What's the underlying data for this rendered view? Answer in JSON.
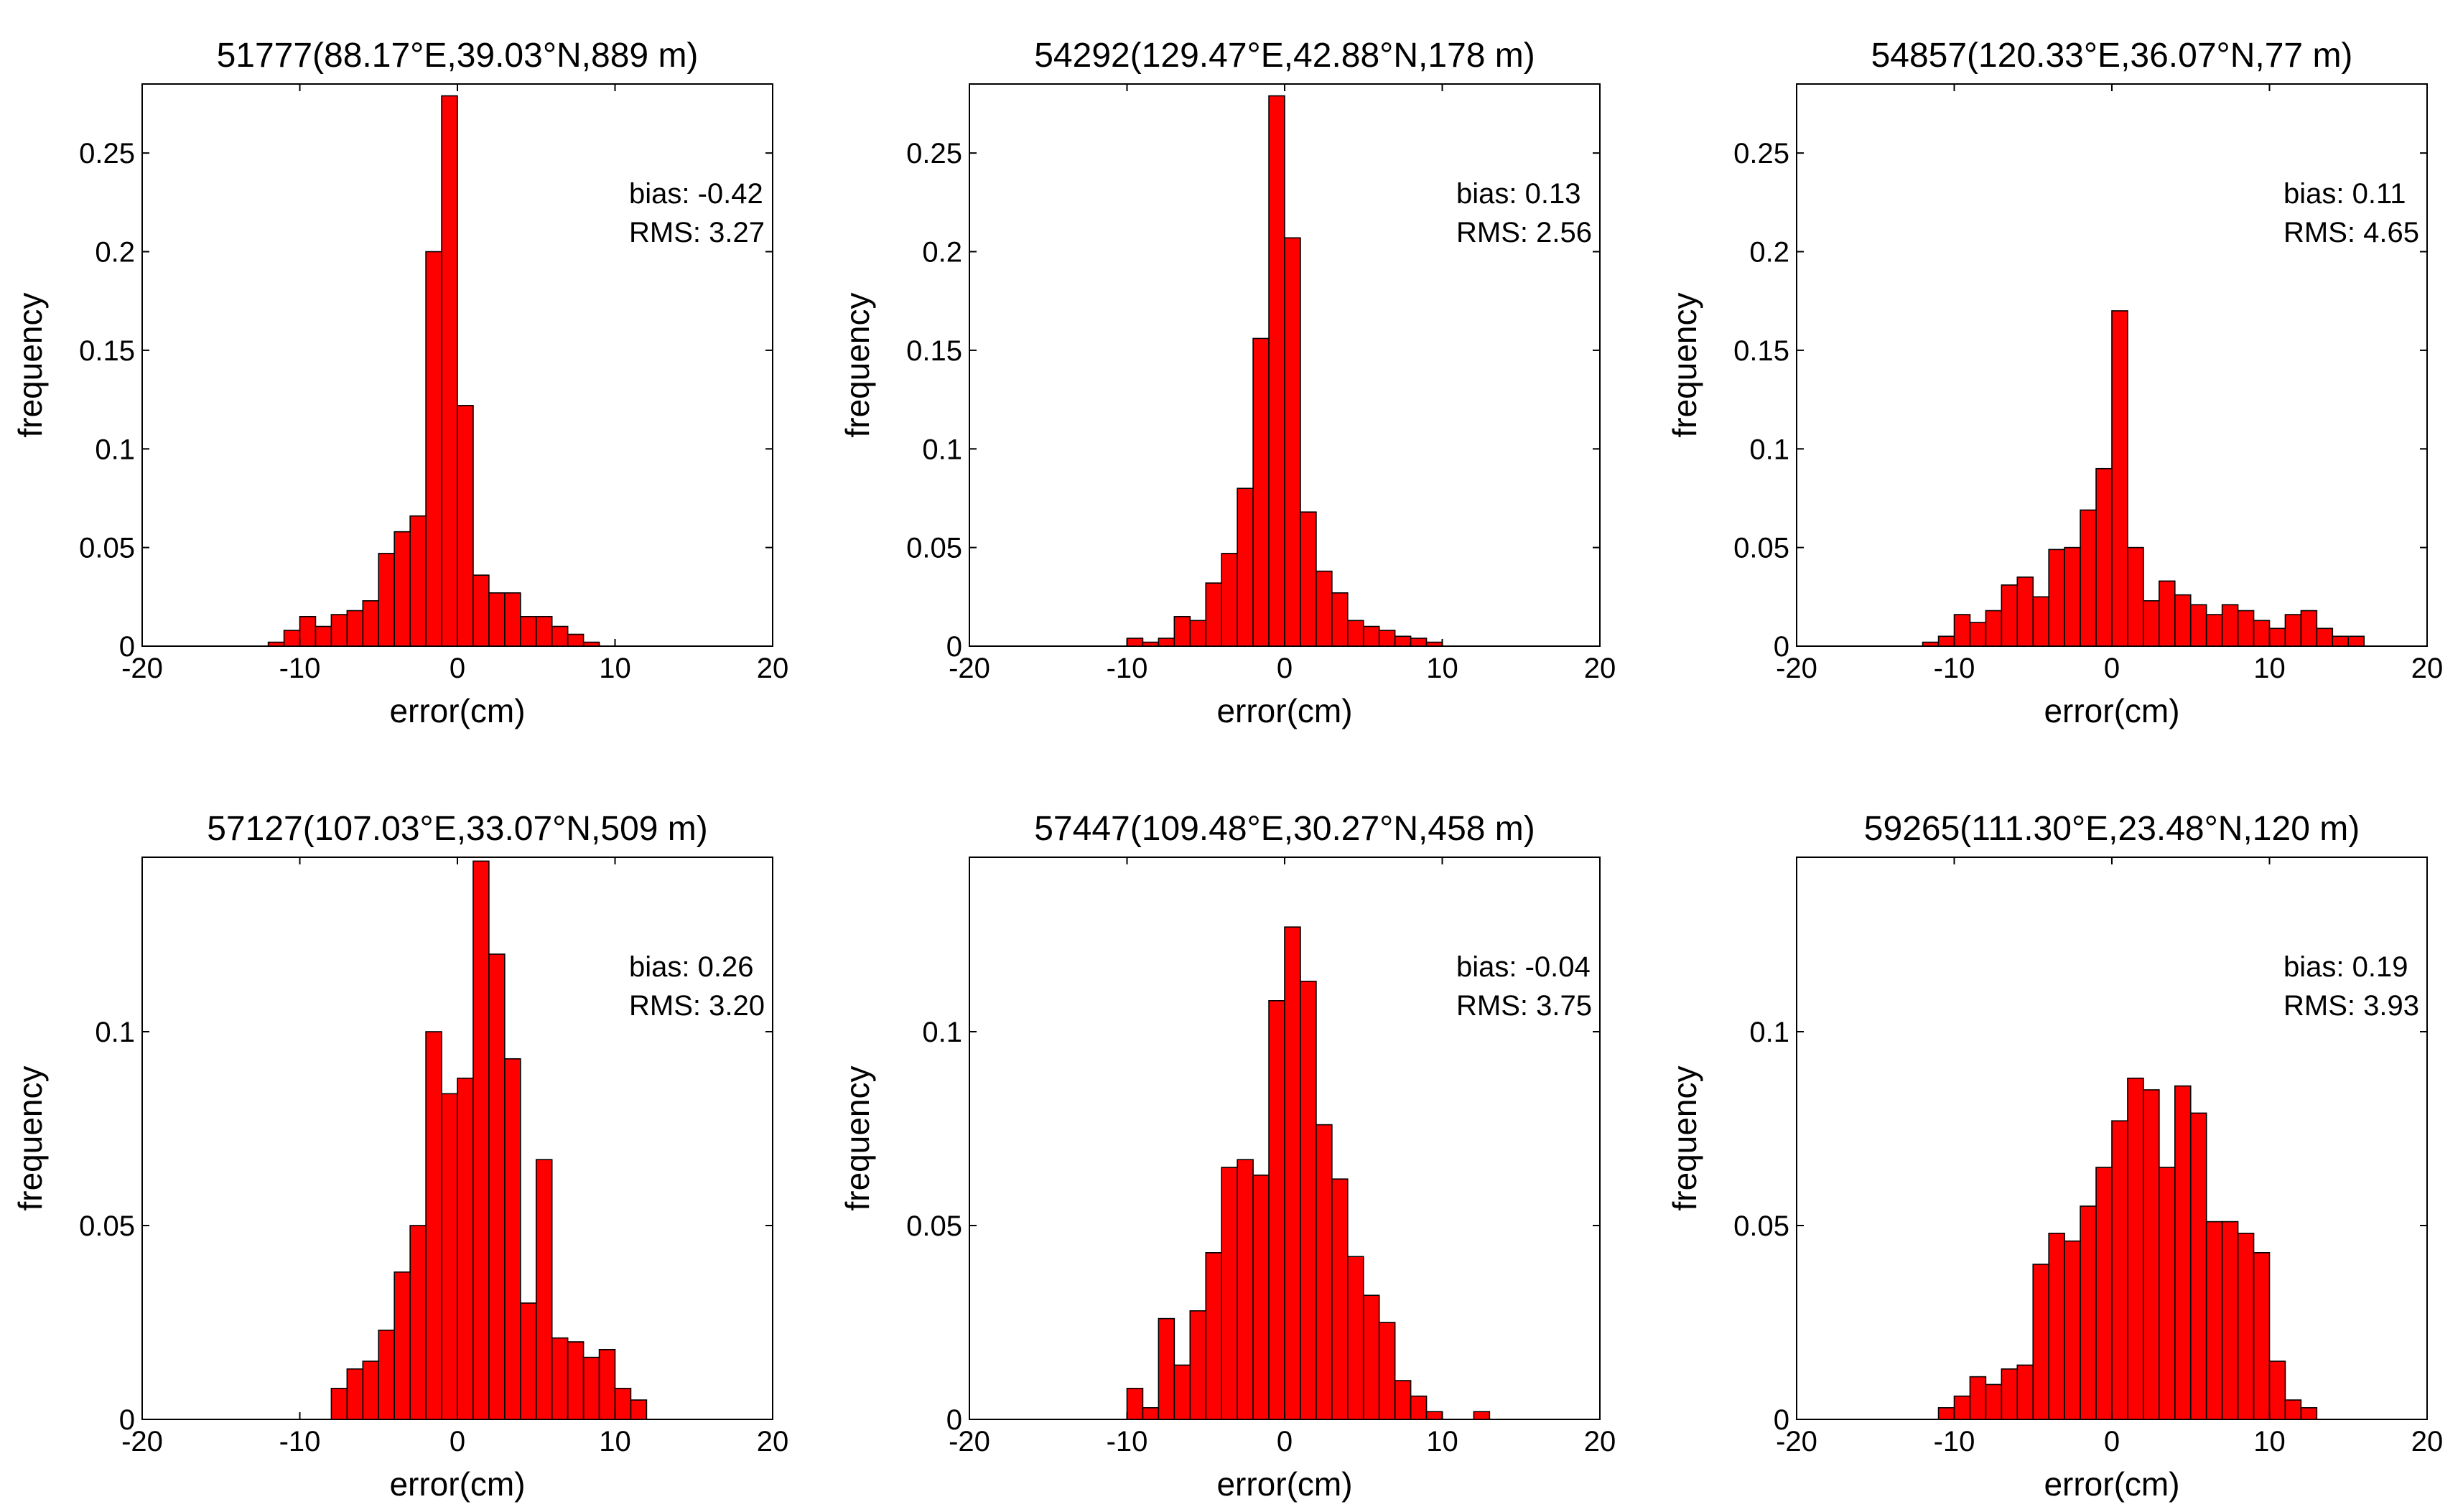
{
  "figure": {
    "bar_color": "#ff0000",
    "edge_color": "#000000",
    "background": "#ffffff"
  },
  "chart_data": [
    {
      "type": "bar",
      "title": "51777(88.17°E,39.03°N,889 m)",
      "xlabel": "error(cm)",
      "ylabel": "frequency",
      "xlim": [
        -20,
        20
      ],
      "ylim": [
        0,
        0.285
      ],
      "bin_width": 1,
      "xticks": [
        "-20",
        "-10",
        "0",
        "10",
        "20"
      ],
      "yticks": [
        "0",
        "0.05",
        "0.1",
        "0.15",
        "0.2",
        "0.25"
      ],
      "bias_text": "bias: -0.42",
      "rms_text": "RMS: 3.27",
      "bins": [
        {
          "x0": -12,
          "value": 0.002
        },
        {
          "x0": -11,
          "value": 0.008
        },
        {
          "x0": -10,
          "value": 0.015
        },
        {
          "x0": -9,
          "value": 0.01
        },
        {
          "x0": -8,
          "value": 0.016
        },
        {
          "x0": -7,
          "value": 0.018
        },
        {
          "x0": -6,
          "value": 0.023
        },
        {
          "x0": -5,
          "value": 0.047
        },
        {
          "x0": -4,
          "value": 0.058
        },
        {
          "x0": -3,
          "value": 0.066
        },
        {
          "x0": -2,
          "value": 0.2
        },
        {
          "x0": -1,
          "value": 0.279
        },
        {
          "x0": 0,
          "value": 0.122
        },
        {
          "x0": 1,
          "value": 0.036
        },
        {
          "x0": 2,
          "value": 0.027
        },
        {
          "x0": 3,
          "value": 0.027
        },
        {
          "x0": 4,
          "value": 0.015
        },
        {
          "x0": 5,
          "value": 0.015
        },
        {
          "x0": 6,
          "value": 0.01
        },
        {
          "x0": 7,
          "value": 0.006
        },
        {
          "x0": 8,
          "value": 0.002
        }
      ]
    },
    {
      "type": "bar",
      "title": "54292(129.47°E,42.88°N,178 m)",
      "xlabel": "error(cm)",
      "ylabel": "frequency",
      "xlim": [
        -20,
        20
      ],
      "ylim": [
        0,
        0.285
      ],
      "bin_width": 1,
      "xticks": [
        "-20",
        "-10",
        "0",
        "10",
        "20"
      ],
      "yticks": [
        "0",
        "0.05",
        "0.1",
        "0.15",
        "0.2",
        "0.25"
      ],
      "bias_text": "bias:  0.13",
      "rms_text": "RMS: 2.56",
      "bins": [
        {
          "x0": -10,
          "value": 0.004
        },
        {
          "x0": -9,
          "value": 0.002
        },
        {
          "x0": -8,
          "value": 0.004
        },
        {
          "x0": -7,
          "value": 0.015
        },
        {
          "x0": -6,
          "value": 0.013
        },
        {
          "x0": -5,
          "value": 0.032
        },
        {
          "x0": -4,
          "value": 0.047
        },
        {
          "x0": -3,
          "value": 0.08
        },
        {
          "x0": -2,
          "value": 0.156
        },
        {
          "x0": -1,
          "value": 0.279
        },
        {
          "x0": 0,
          "value": 0.207
        },
        {
          "x0": 1,
          "value": 0.068
        },
        {
          "x0": 2,
          "value": 0.038
        },
        {
          "x0": 3,
          "value": 0.027
        },
        {
          "x0": 4,
          "value": 0.013
        },
        {
          "x0": 5,
          "value": 0.01
        },
        {
          "x0": 6,
          "value": 0.008
        },
        {
          "x0": 7,
          "value": 0.005
        },
        {
          "x0": 8,
          "value": 0.004
        },
        {
          "x0": 9,
          "value": 0.002
        }
      ]
    },
    {
      "type": "bar",
      "title": "54857(120.33°E,36.07°N,77 m)",
      "xlabel": "error(cm)",
      "ylabel": "frequency",
      "xlim": [
        -20,
        20
      ],
      "ylim": [
        0,
        0.285
      ],
      "bin_width": 1,
      "xticks": [
        "-20",
        "-10",
        "0",
        "10",
        "20"
      ],
      "yticks": [
        "0",
        "0.05",
        "0.1",
        "0.15",
        "0.2",
        "0.25"
      ],
      "bias_text": "bias:  0.11",
      "rms_text": "RMS: 4.65",
      "bins": [
        {
          "x0": -12,
          "value": 0.002
        },
        {
          "x0": -11,
          "value": 0.005
        },
        {
          "x0": -10,
          "value": 0.016
        },
        {
          "x0": -9,
          "value": 0.012
        },
        {
          "x0": -8,
          "value": 0.018
        },
        {
          "x0": -7,
          "value": 0.031
        },
        {
          "x0": -6,
          "value": 0.035
        },
        {
          "x0": -5,
          "value": 0.025
        },
        {
          "x0": -4,
          "value": 0.049
        },
        {
          "x0": -3,
          "value": 0.05
        },
        {
          "x0": -2,
          "value": 0.069
        },
        {
          "x0": -1,
          "value": 0.09
        },
        {
          "x0": 0,
          "value": 0.17
        },
        {
          "x0": 1,
          "value": 0.05
        },
        {
          "x0": 2,
          "value": 0.023
        },
        {
          "x0": 3,
          "value": 0.033
        },
        {
          "x0": 4,
          "value": 0.026
        },
        {
          "x0": 5,
          "value": 0.021
        },
        {
          "x0": 6,
          "value": 0.016
        },
        {
          "x0": 7,
          "value": 0.021
        },
        {
          "x0": 8,
          "value": 0.018
        },
        {
          "x0": 9,
          "value": 0.013
        },
        {
          "x0": 10,
          "value": 0.009
        },
        {
          "x0": 11,
          "value": 0.016
        },
        {
          "x0": 12,
          "value": 0.018
        },
        {
          "x0": 13,
          "value": 0.009
        },
        {
          "x0": 14,
          "value": 0.005
        },
        {
          "x0": 15,
          "value": 0.005
        }
      ]
    },
    {
      "type": "bar",
      "title": "57127(107.03°E,33.07°N,509 m)",
      "xlabel": "error(cm)",
      "ylabel": "frequency",
      "xlim": [
        -20,
        20
      ],
      "ylim": [
        0,
        0.145
      ],
      "bin_width": 1,
      "xticks": [
        "-20",
        "-10",
        "0",
        "10",
        "20"
      ],
      "yticks": [
        "0",
        "0.05",
        "0.1"
      ],
      "bias_text": "bias:  0.26",
      "rms_text": "RMS: 3.20",
      "bins": [
        {
          "x0": -8,
          "value": 0.008
        },
        {
          "x0": -7,
          "value": 0.013
        },
        {
          "x0": -6,
          "value": 0.015
        },
        {
          "x0": -5,
          "value": 0.023
        },
        {
          "x0": -4,
          "value": 0.038
        },
        {
          "x0": -3,
          "value": 0.05
        },
        {
          "x0": -2,
          "value": 0.1
        },
        {
          "x0": -1,
          "value": 0.084
        },
        {
          "x0": 0,
          "value": 0.088
        },
        {
          "x0": 1,
          "value": 0.144
        },
        {
          "x0": 2,
          "value": 0.12
        },
        {
          "x0": 3,
          "value": 0.093
        },
        {
          "x0": 4,
          "value": 0.03
        },
        {
          "x0": 5,
          "value": 0.067
        },
        {
          "x0": 6,
          "value": 0.021
        },
        {
          "x0": 7,
          "value": 0.02
        },
        {
          "x0": 8,
          "value": 0.016
        },
        {
          "x0": 9,
          "value": 0.018
        },
        {
          "x0": 10,
          "value": 0.008
        },
        {
          "x0": 11,
          "value": 0.005
        }
      ]
    },
    {
      "type": "bar",
      "title": "57447(109.48°E,30.27°N,458 m)",
      "xlabel": "error(cm)",
      "ylabel": "frequency",
      "xlim": [
        -20,
        20
      ],
      "ylim": [
        0,
        0.145
      ],
      "bin_width": 1,
      "xticks": [
        "-20",
        "-10",
        "0",
        "10",
        "20"
      ],
      "yticks": [
        "0",
        "0.05",
        "0.1"
      ],
      "bias_text": "bias: -0.04",
      "rms_text": "RMS: 3.75",
      "bins": [
        {
          "x0": -10,
          "value": 0.008
        },
        {
          "x0": -9,
          "value": 0.003
        },
        {
          "x0": -8,
          "value": 0.026
        },
        {
          "x0": -7,
          "value": 0.014
        },
        {
          "x0": -6,
          "value": 0.028
        },
        {
          "x0": -5,
          "value": 0.043
        },
        {
          "x0": -4,
          "value": 0.065
        },
        {
          "x0": -3,
          "value": 0.067
        },
        {
          "x0": -2,
          "value": 0.063
        },
        {
          "x0": -1,
          "value": 0.108
        },
        {
          "x0": 0,
          "value": 0.127
        },
        {
          "x0": 1,
          "value": 0.113
        },
        {
          "x0": 2,
          "value": 0.076
        },
        {
          "x0": 3,
          "value": 0.062
        },
        {
          "x0": 4,
          "value": 0.042
        },
        {
          "x0": 5,
          "value": 0.032
        },
        {
          "x0": 6,
          "value": 0.025
        },
        {
          "x0": 7,
          "value": 0.01
        },
        {
          "x0": 8,
          "value": 0.006
        },
        {
          "x0": 9,
          "value": 0.002
        },
        {
          "x0": 10,
          "value": 0
        },
        {
          "x0": 11,
          "value": 0
        },
        {
          "x0": 12,
          "value": 0.002
        }
      ]
    },
    {
      "type": "bar",
      "title": "59265(111.30°E,23.48°N,120 m)",
      "xlabel": "error(cm)",
      "ylabel": "frequency",
      "xlim": [
        -20,
        20
      ],
      "ylim": [
        0,
        0.145
      ],
      "bin_width": 1,
      "xticks": [
        "-20",
        "-10",
        "0",
        "10",
        "20"
      ],
      "yticks": [
        "0",
        "0.05",
        "0.1"
      ],
      "bias_text": "bias:  0.19",
      "rms_text": "RMS: 3.93",
      "bins": [
        {
          "x0": -11,
          "value": 0.003
        },
        {
          "x0": -10,
          "value": 0.006
        },
        {
          "x0": -9,
          "value": 0.011
        },
        {
          "x0": -8,
          "value": 0.009
        },
        {
          "x0": -7,
          "value": 0.013
        },
        {
          "x0": -6,
          "value": 0.014
        },
        {
          "x0": -5,
          "value": 0.04
        },
        {
          "x0": -4,
          "value": 0.048
        },
        {
          "x0": -3,
          "value": 0.046
        },
        {
          "x0": -2,
          "value": 0.055
        },
        {
          "x0": -1,
          "value": 0.065
        },
        {
          "x0": 0,
          "value": 0.077
        },
        {
          "x0": 1,
          "value": 0.088
        },
        {
          "x0": 2,
          "value": 0.085
        },
        {
          "x0": 3,
          "value": 0.065
        },
        {
          "x0": 4,
          "value": 0.086
        },
        {
          "x0": 5,
          "value": 0.079
        },
        {
          "x0": 6,
          "value": 0.051
        },
        {
          "x0": 7,
          "value": 0.051
        },
        {
          "x0": 8,
          "value": 0.048
        },
        {
          "x0": 9,
          "value": 0.043
        },
        {
          "x0": 10,
          "value": 0.015
        },
        {
          "x0": 11,
          "value": 0.005
        },
        {
          "x0": 12,
          "value": 0.003
        }
      ]
    }
  ]
}
